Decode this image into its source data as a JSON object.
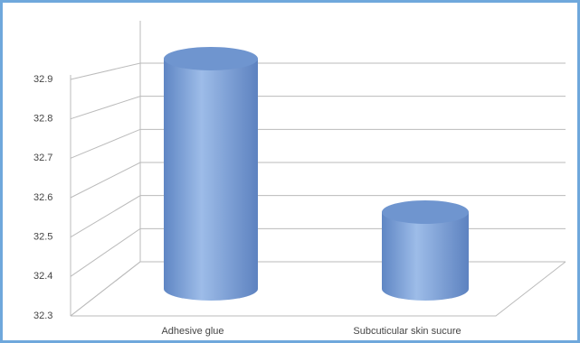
{
  "chart_data": {
    "type": "bar3d",
    "categories": [
      "Adhesive glue",
      "Subcuticular skin sucure"
    ],
    "values": [
      32.9,
      32.5
    ],
    "color": "#7fa7dc",
    "ylim": [
      32.3,
      32.9
    ],
    "yticks": [
      32.3,
      32.4,
      32.5,
      32.6,
      32.7,
      32.8,
      32.9
    ],
    "grid": true
  }
}
